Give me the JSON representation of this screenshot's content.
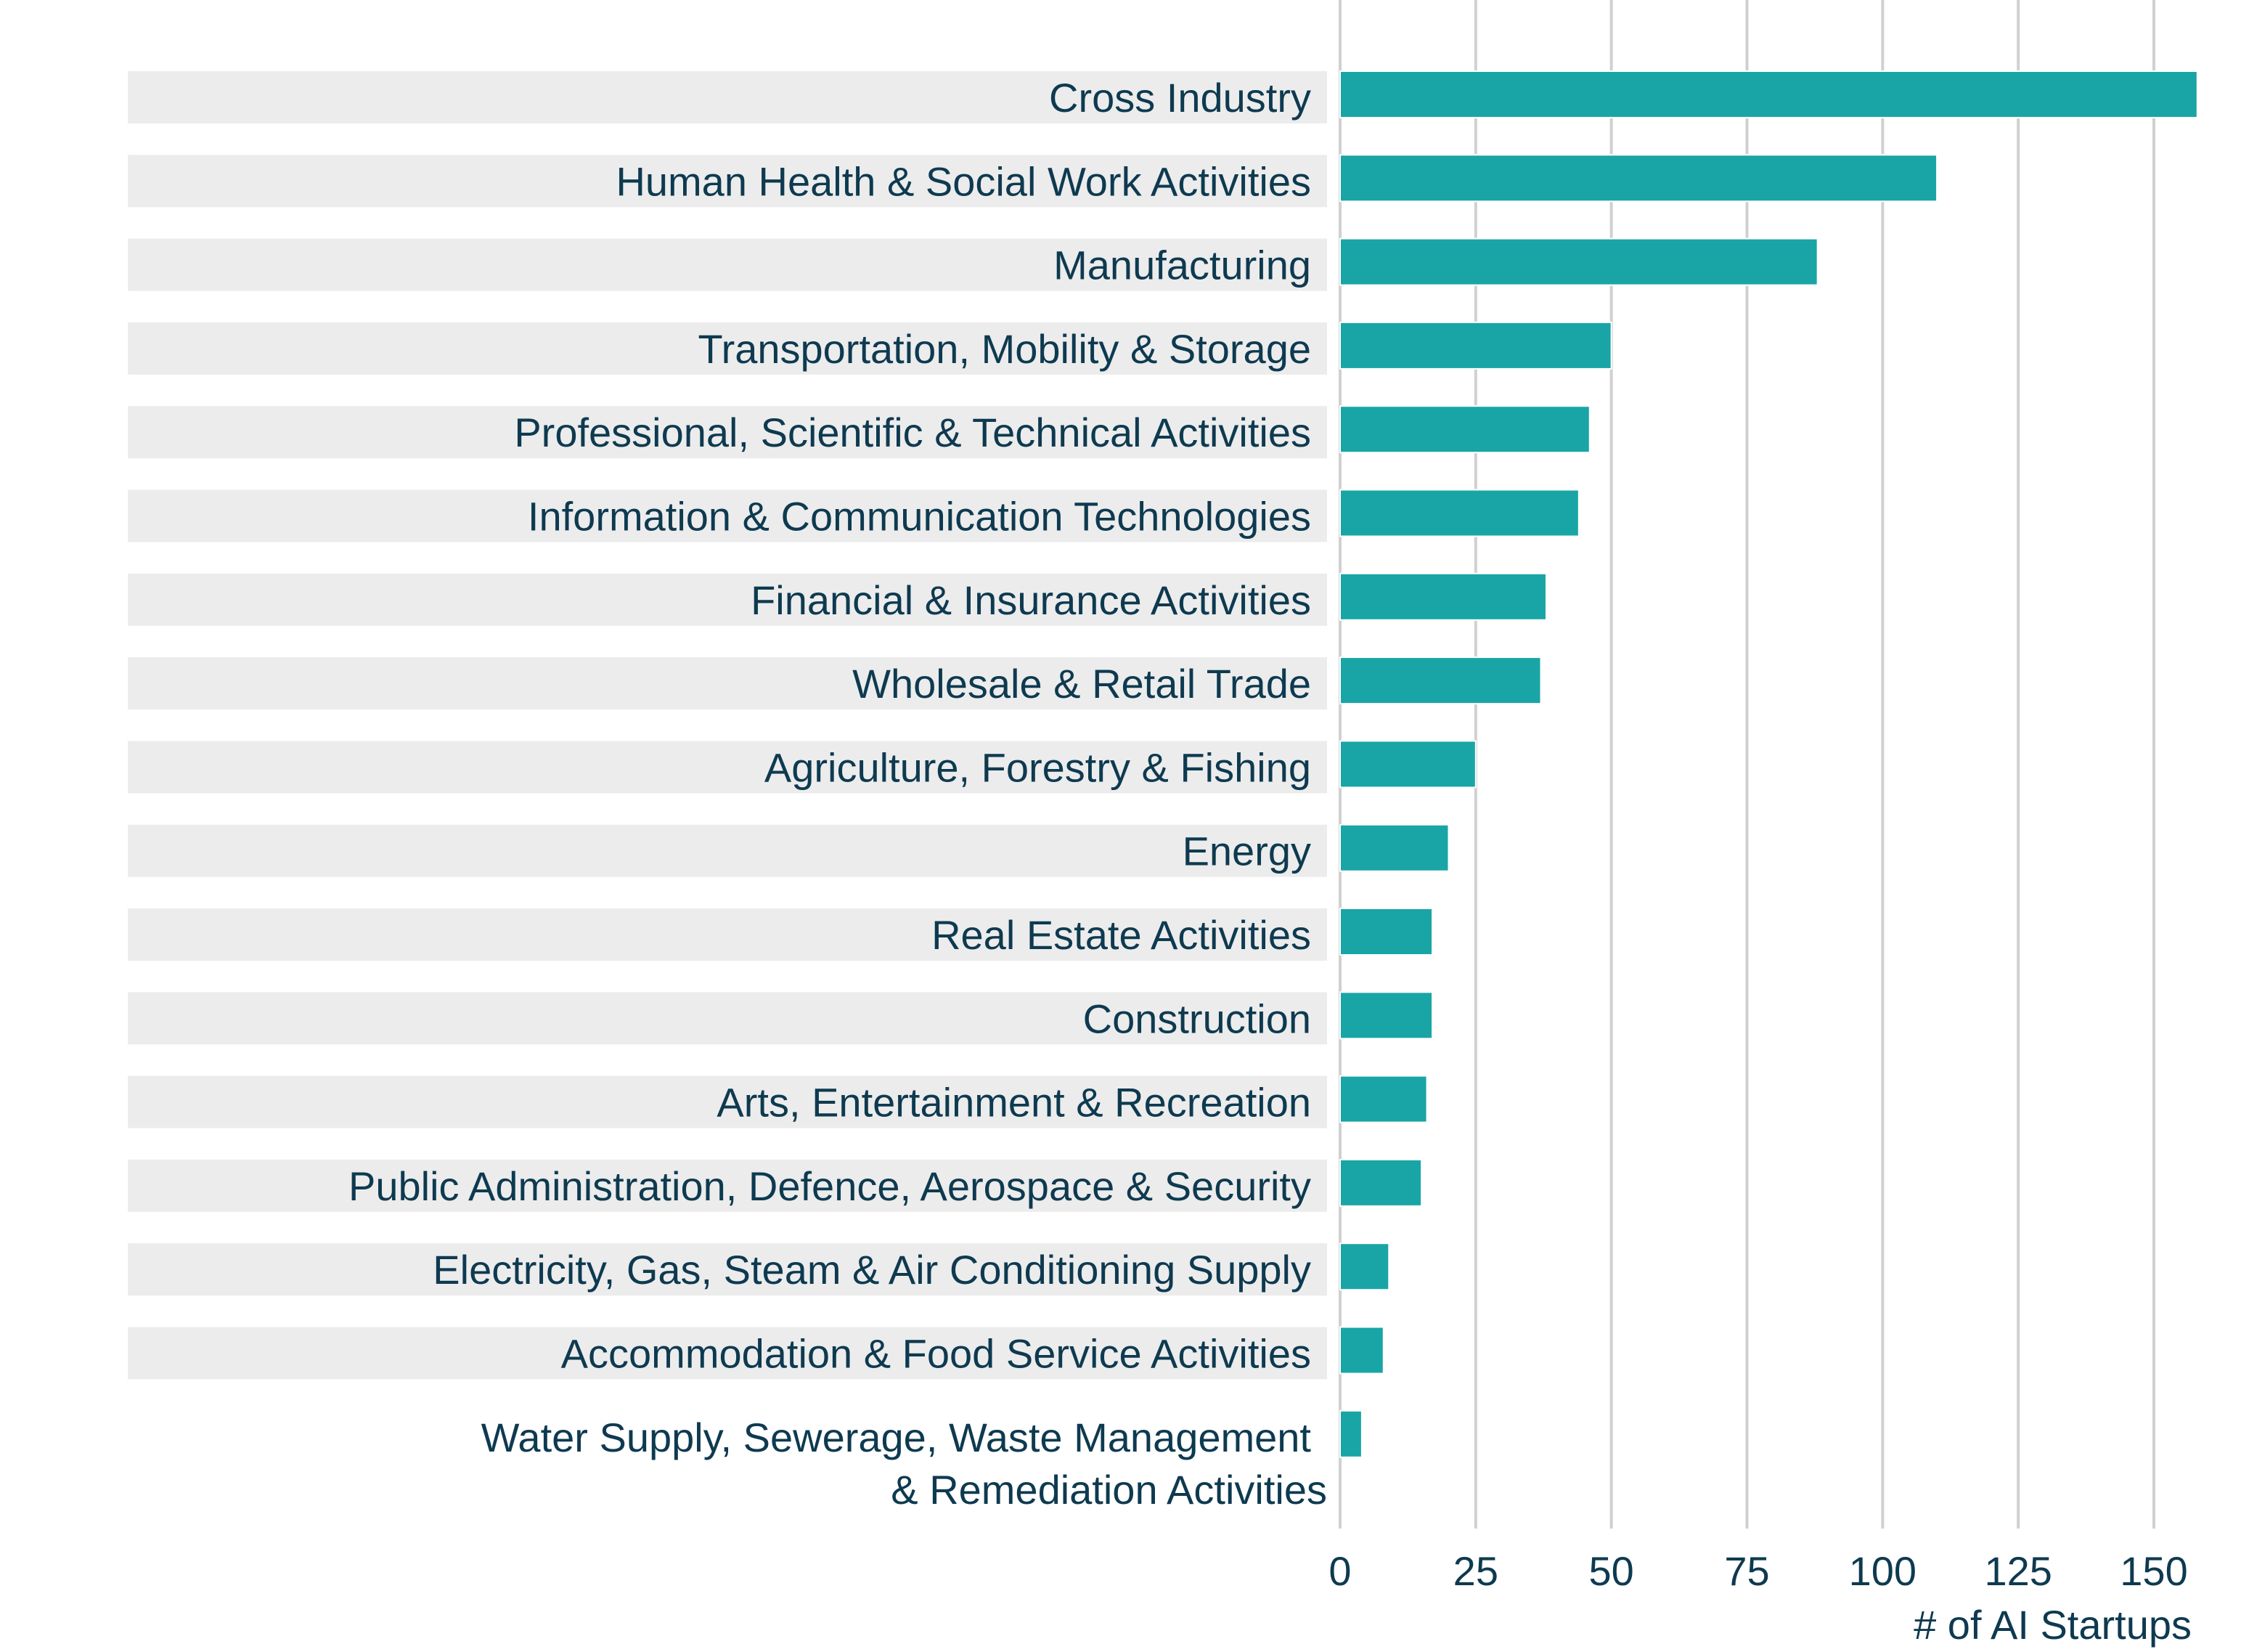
{
  "chart_data": {
    "type": "bar",
    "orientation": "horizontal",
    "title": "",
    "xlabel": "# of AI Startups",
    "ylabel": "",
    "xlim": [
      0,
      160
    ],
    "xticks": [
      0,
      25,
      50,
      75,
      100,
      125,
      150
    ],
    "grid": true,
    "legend": "none",
    "categories": [
      [
        "Cross Industry"
      ],
      [
        "Human Health & Social Work Activities"
      ],
      [
        "Manufacturing"
      ],
      [
        "Transportation, Mobility & Storage"
      ],
      [
        "Professional, Scientific & Technical Activities"
      ],
      [
        "Information & Communication Technologies"
      ],
      [
        "Financial & Insurance Activities"
      ],
      [
        "Wholesale & Retail Trade"
      ],
      [
        "Agriculture, Forestry & Fishing"
      ],
      [
        "Energy"
      ],
      [
        "Real Estate Activities"
      ],
      [
        "Construction"
      ],
      [
        "Arts, Entertainment & Recreation"
      ],
      [
        "Public Administration, Defence, Aerospace & Security"
      ],
      [
        "Electricity, Gas, Steam & Air Conditioning Supply"
      ],
      [
        "Accommodation & Food Service Activities"
      ],
      [
        "Water Supply, Sewerage, Waste Management",
        "& Remediation Activities"
      ]
    ],
    "values": [
      158,
      110,
      88,
      50,
      46,
      44,
      38,
      37,
      25,
      20,
      17,
      17,
      16,
      15,
      9,
      8,
      4
    ],
    "row_band": [
      true,
      true,
      true,
      true,
      true,
      true,
      true,
      true,
      true,
      true,
      true,
      true,
      true,
      true,
      true,
      true,
      false
    ]
  },
  "colors": {
    "bar": "#19a5a6",
    "band": "#ececec",
    "text": "#0e3a50",
    "grid": "#d0d0d0"
  }
}
